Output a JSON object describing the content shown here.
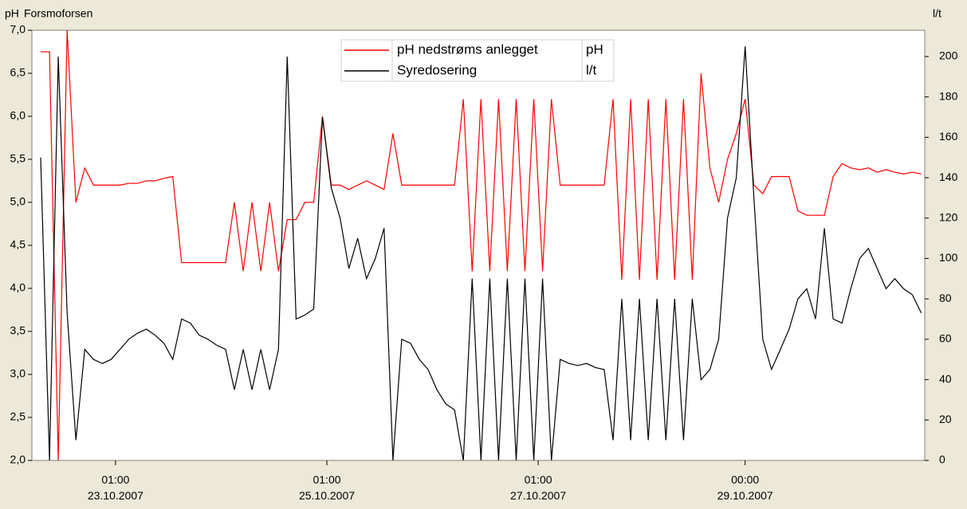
{
  "chart_data": {
    "type": "line",
    "title": "Forsmoforsen",
    "y_label": "pH",
    "y2_label": "l/t",
    "x": [
      "2007-10-22T08:00",
      "2007-10-22T10:00",
      "2007-10-22T12:00",
      "2007-10-22T14:00",
      "2007-10-22T16:00",
      "2007-10-22T18:00",
      "2007-10-22T20:00",
      "2007-10-22T22:00",
      "2007-10-23T00:00",
      "2007-10-23T02:00",
      "2007-10-23T04:00",
      "2007-10-23T06:00",
      "2007-10-23T08:00",
      "2007-10-23T10:00",
      "2007-10-23T12:00",
      "2007-10-23T14:00",
      "2007-10-23T16:00",
      "2007-10-23T18:00",
      "2007-10-23T20:00",
      "2007-10-23T22:00",
      "2007-10-24T00:00",
      "2007-10-24T02:00",
      "2007-10-24T04:00",
      "2007-10-24T06:00",
      "2007-10-24T08:00",
      "2007-10-24T10:00",
      "2007-10-24T12:00",
      "2007-10-24T14:00",
      "2007-10-24T16:00",
      "2007-10-24T18:00",
      "2007-10-24T20:00",
      "2007-10-24T22:00",
      "2007-10-25T00:00",
      "2007-10-25T02:00",
      "2007-10-25T04:00",
      "2007-10-25T06:00",
      "2007-10-25T08:00",
      "2007-10-25T10:00",
      "2007-10-25T12:00",
      "2007-10-25T14:00",
      "2007-10-25T16:00",
      "2007-10-25T18:00",
      "2007-10-25T20:00",
      "2007-10-25T22:00",
      "2007-10-26T00:00",
      "2007-10-26T02:00",
      "2007-10-26T04:00",
      "2007-10-26T06:00",
      "2007-10-26T08:00",
      "2007-10-26T10:00",
      "2007-10-26T12:00",
      "2007-10-26T14:00",
      "2007-10-26T16:00",
      "2007-10-26T18:00",
      "2007-10-26T20:00",
      "2007-10-26T22:00",
      "2007-10-27T00:00",
      "2007-10-27T02:00",
      "2007-10-27T04:00",
      "2007-10-27T06:00",
      "2007-10-27T08:00",
      "2007-10-27T10:00",
      "2007-10-27T12:00",
      "2007-10-27T14:00",
      "2007-10-27T16:00",
      "2007-10-27T18:00",
      "2007-10-27T20:00",
      "2007-10-27T22:00",
      "2007-10-28T00:00",
      "2007-10-28T02:00",
      "2007-10-28T04:00",
      "2007-10-28T06:00",
      "2007-10-28T08:00",
      "2007-10-28T10:00",
      "2007-10-28T12:00",
      "2007-10-28T14:00",
      "2007-10-28T16:00",
      "2007-10-28T18:00",
      "2007-10-28T20:00",
      "2007-10-28T22:00",
      "2007-10-29T00:00",
      "2007-10-29T02:00",
      "2007-10-29T04:00",
      "2007-10-29T06:00",
      "2007-10-29T08:00",
      "2007-10-29T10:00",
      "2007-10-29T12:00",
      "2007-10-29T14:00",
      "2007-10-29T16:00",
      "2007-10-29T18:00",
      "2007-10-29T20:00",
      "2007-10-29T22:00",
      "2007-10-30T00:00",
      "2007-10-30T02:00",
      "2007-10-30T04:00",
      "2007-10-30T06:00",
      "2007-10-30T08:00",
      "2007-10-30T10:00",
      "2007-10-30T12:00",
      "2007-10-30T14:00",
      "2007-10-30T16:00"
    ],
    "series": [
      {
        "name": "pH nedstrøms anlegget",
        "unit": "pH",
        "color": "#ff0000",
        "axis": "y",
        "values": [
          6.75,
          6.75,
          2.0,
          7.0,
          5.0,
          5.4,
          5.2,
          5.2,
          5.2,
          5.2,
          5.22,
          5.22,
          5.25,
          5.25,
          5.28,
          5.3,
          4.3,
          4.3,
          4.3,
          4.3,
          4.3,
          4.3,
          5.0,
          4.2,
          5.0,
          4.2,
          5.0,
          4.2,
          4.8,
          4.8,
          5.0,
          5.0,
          6.0,
          5.2,
          5.2,
          5.15,
          5.2,
          5.25,
          5.2,
          5.15,
          5.8,
          5.2,
          5.2,
          5.2,
          5.2,
          5.2,
          5.2,
          5.2,
          6.2,
          4.2,
          6.2,
          4.2,
          6.2,
          4.2,
          6.2,
          4.2,
          6.2,
          4.2,
          6.2,
          5.2,
          5.2,
          5.2,
          5.2,
          5.2,
          5.2,
          6.2,
          4.1,
          6.2,
          4.1,
          6.2,
          4.1,
          6.2,
          4.1,
          6.2,
          4.1,
          6.5,
          5.4,
          5.0,
          5.5,
          5.8,
          6.2,
          5.2,
          5.1,
          5.3,
          5.3,
          5.3,
          4.9,
          4.85,
          4.85,
          4.85,
          5.3,
          5.45,
          5.4,
          5.38,
          5.4,
          5.35,
          5.38,
          5.35,
          5.33,
          5.35,
          5.33
        ]
      },
      {
        "name": "Syredosering",
        "unit": "l/t",
        "color": "#000000",
        "axis": "y2",
        "values": [
          150,
          0,
          200,
          73,
          10,
          55,
          50,
          48,
          50,
          55,
          60,
          63,
          65,
          62,
          58,
          50,
          70,
          68,
          62,
          60,
          57,
          55,
          35,
          55,
          35,
          55,
          35,
          55,
          200,
          70,
          72,
          75,
          170,
          135,
          120,
          95,
          110,
          90,
          100,
          115,
          0,
          60,
          58,
          50,
          45,
          35,
          28,
          25,
          0,
          90,
          0,
          90,
          0,
          90,
          0,
          90,
          0,
          90,
          0,
          50,
          48,
          47,
          48,
          46,
          45,
          10,
          80,
          10,
          80,
          10,
          80,
          10,
          80,
          10,
          80,
          40,
          45,
          60,
          120,
          140,
          205,
          130,
          60,
          45,
          55,
          65,
          80,
          85,
          70,
          115,
          70,
          68,
          85,
          100,
          105,
          95,
          85,
          90,
          85,
          82,
          73
        ]
      }
    ],
    "xlim": [
      "2007-10-22T06:00",
      "2007-10-30T16:48"
    ],
    "xticks": [
      {
        "value": "2007-10-23T01:00",
        "label": "01:00\n23.10.2007"
      },
      {
        "value": "2007-10-25T01:00",
        "label": "01:00\n25.10.2007"
      },
      {
        "value": "2007-10-27T01:00",
        "label": "01:00\n27.10.2007"
      },
      {
        "value": "2007-10-29T00:00",
        "label": "00:00\n29.10.2007"
      }
    ],
    "ylim": [
      2,
      7
    ],
    "yticks": [
      {
        "value": 2,
        "label": "2,0"
      },
      {
        "value": 2.5,
        "label": "2,5"
      },
      {
        "value": 3,
        "label": "3,0"
      },
      {
        "value": 3.5,
        "label": "3,5"
      },
      {
        "value": 4,
        "label": "4,0"
      },
      {
        "value": 4.5,
        "label": "4,5"
      },
      {
        "value": 5,
        "label": "5,0"
      },
      {
        "value": 5.5,
        "label": "5,5"
      },
      {
        "value": 6,
        "label": "6,0"
      },
      {
        "value": 6.5,
        "label": "6,5"
      },
      {
        "value": 7,
        "label": "7,0"
      }
    ],
    "y2lim": [
      0,
      213
    ],
    "y2ticks": [
      0,
      20,
      40,
      60,
      80,
      100,
      120,
      140,
      160,
      180,
      200
    ],
    "grid": false,
    "legend": "top"
  }
}
